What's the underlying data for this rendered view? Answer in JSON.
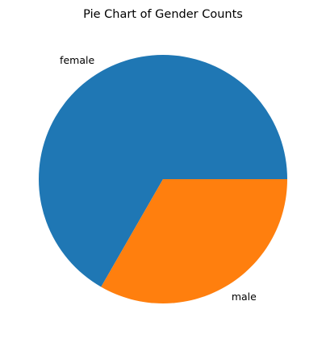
{
  "chart_data": {
    "type": "pie",
    "title": "Pie Chart of Gender Counts",
    "slices": [
      {
        "label": "female",
        "value": 66.7,
        "color": "#1f77b4"
      },
      {
        "label": "male",
        "value": 33.3,
        "color": "#ff7f0e"
      }
    ],
    "start_angle_deg": 0,
    "direction": "counterclockwise",
    "legend": "none"
  }
}
